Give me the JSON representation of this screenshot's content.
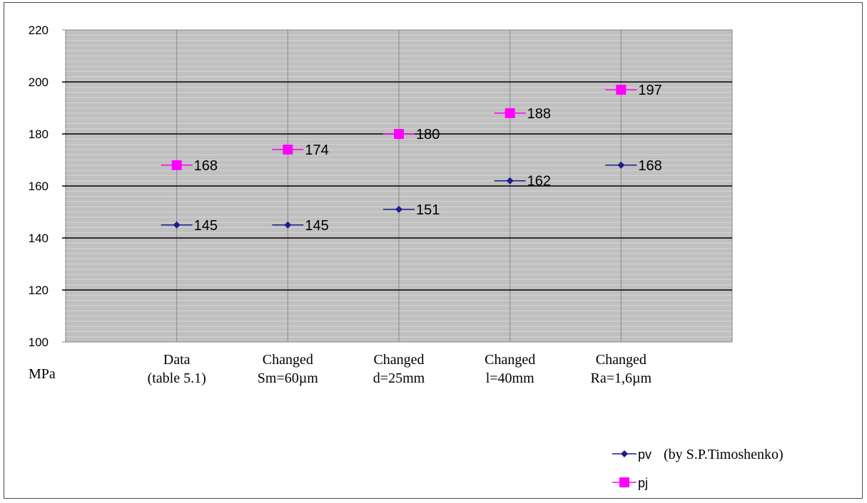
{
  "chart_data": {
    "type": "line",
    "categories": [
      [
        "Data",
        "(table 5.1)"
      ],
      [
        "Changed",
        "Sm=60µm"
      ],
      [
        "Changed",
        "d=25mm"
      ],
      [
        "Changed",
        "l=40mm"
      ],
      [
        "Changed",
        "Ra=1,6µm"
      ]
    ],
    "series": [
      {
        "name": "pv",
        "note": "(by S.P.Timoshenko)",
        "color": "#1c1c8c",
        "marker": "diamond",
        "values": [
          145,
          145,
          151,
          162,
          168
        ],
        "labels": [
          "145",
          "145",
          "151",
          "162",
          "168"
        ]
      },
      {
        "name": "pj",
        "color": "#ff00ff",
        "marker": "square",
        "values": [
          168,
          174,
          180,
          188,
          197
        ],
        "labels": [
          "168",
          "174",
          "180",
          "188",
          "197"
        ]
      }
    ],
    "ylim": [
      100,
      220
    ],
    "ytick_step": 20,
    "ytick_labels": [
      "100",
      "120",
      "140",
      "160",
      "180",
      "200",
      "220"
    ],
    "ylabel": "MPa",
    "xlabel": "",
    "title": "",
    "grid": true,
    "lines_connected": false,
    "legend_position": "bottom-right",
    "plot_background": "#c0c0c0"
  }
}
